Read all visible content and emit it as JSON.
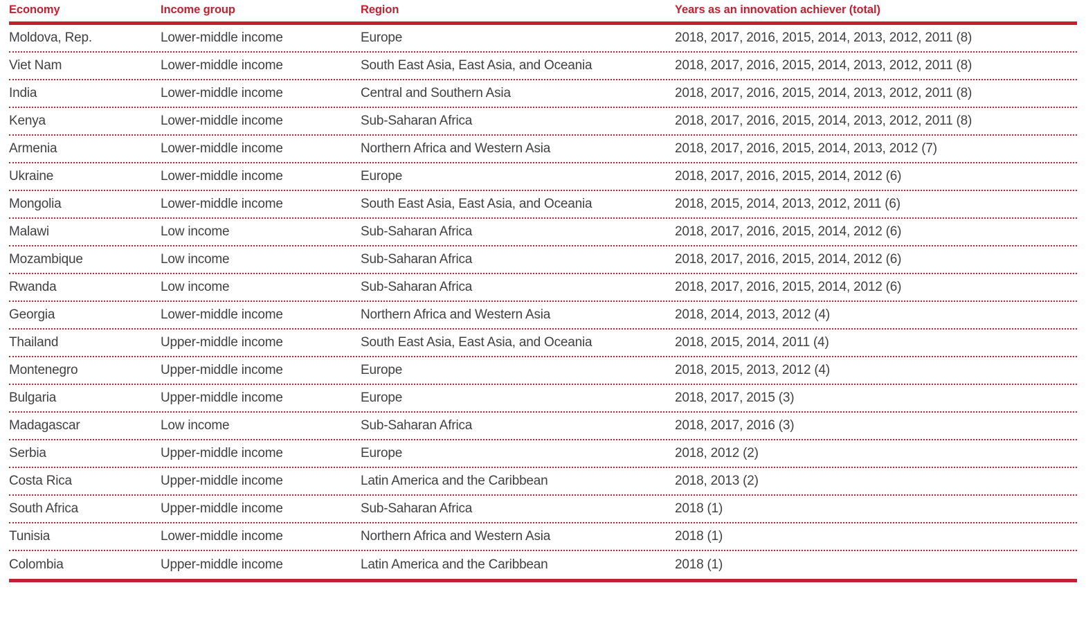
{
  "table": {
    "colors": {
      "accent": "#c32031",
      "body_text": "#414042"
    },
    "columns": [
      "Economy",
      "Income group",
      "Region",
      "Years as an innovation achiever (total)"
    ],
    "rows": [
      {
        "economy": "Moldova, Rep.",
        "income_group": "Lower-middle income",
        "region": "Europe",
        "years": "2018, 2017, 2016, 2015, 2014, 2013, 2012, 2011 (8)"
      },
      {
        "economy": "Viet Nam",
        "income_group": "Lower-middle income",
        "region": "South East Asia, East Asia, and Oceania",
        "years": "2018, 2017, 2016, 2015, 2014, 2013, 2012, 2011 (8)"
      },
      {
        "economy": "India",
        "income_group": "Lower-middle income",
        "region": "Central and Southern Asia",
        "years": "2018, 2017, 2016, 2015, 2014, 2013, 2012, 2011 (8)"
      },
      {
        "economy": "Kenya",
        "income_group": "Lower-middle income",
        "region": "Sub-Saharan Africa",
        "years": "2018, 2017, 2016, 2015, 2014, 2013, 2012, 2011 (8)"
      },
      {
        "economy": "Armenia",
        "income_group": "Lower-middle income",
        "region": "Northern Africa and Western Asia",
        "years": "2018, 2017, 2016, 2015, 2014, 2013, 2012 (7)"
      },
      {
        "economy": "Ukraine",
        "income_group": "Lower-middle income",
        "region": "Europe",
        "years": "2018, 2017, 2016, 2015, 2014, 2012 (6)"
      },
      {
        "economy": "Mongolia",
        "income_group": "Lower-middle income",
        "region": "South East Asia, East Asia, and Oceania",
        "years": "2018, 2015, 2014, 2013, 2012, 2011 (6)"
      },
      {
        "economy": "Malawi",
        "income_group": "Low income",
        "region": "Sub-Saharan Africa",
        "years": "2018, 2017, 2016, 2015, 2014, 2012 (6)"
      },
      {
        "economy": "Mozambique",
        "income_group": "Low income",
        "region": "Sub-Saharan Africa",
        "years": "2018, 2017, 2016, 2015, 2014, 2012 (6)"
      },
      {
        "economy": "Rwanda",
        "income_group": "Low income",
        "region": "Sub-Saharan Africa",
        "years": "2018, 2017, 2016, 2015, 2014, 2012 (6)"
      },
      {
        "economy": "Georgia",
        "income_group": "Lower-middle income",
        "region": "Northern Africa and Western Asia",
        "years": "2018, 2014, 2013, 2012 (4)"
      },
      {
        "economy": "Thailand",
        "income_group": "Upper-middle income",
        "region": "South East Asia, East Asia, and Oceania",
        "years": "2018, 2015, 2014, 2011 (4)"
      },
      {
        "economy": "Montenegro",
        "income_group": "Upper-middle income",
        "region": "Europe",
        "years": "2018, 2015, 2013, 2012 (4)"
      },
      {
        "economy": "Bulgaria",
        "income_group": "Upper-middle income",
        "region": "Europe",
        "years": "2018, 2017, 2015 (3)"
      },
      {
        "economy": "Madagascar",
        "income_group": "Low income",
        "region": "Sub-Saharan Africa",
        "years": "2018, 2017, 2016 (3)"
      },
      {
        "economy": "Serbia",
        "income_group": "Upper-middle income",
        "region": "Europe",
        "years": "2018, 2012 (2)"
      },
      {
        "economy": "Costa Rica",
        "income_group": "Upper-middle income",
        "region": "Latin America and the Caribbean",
        "years": "2018, 2013 (2)"
      },
      {
        "economy": "South Africa",
        "income_group": "Upper-middle income",
        "region": "Sub-Saharan Africa",
        "years": "2018 (1)"
      },
      {
        "economy": "Tunisia",
        "income_group": "Lower-middle income",
        "region": "Northern Africa and Western Asia",
        "years": "2018 (1)"
      },
      {
        "economy": "Colombia",
        "income_group": "Upper-middle income",
        "region": "Latin America and the Caribbean",
        "years": "2018 (1)"
      }
    ]
  }
}
